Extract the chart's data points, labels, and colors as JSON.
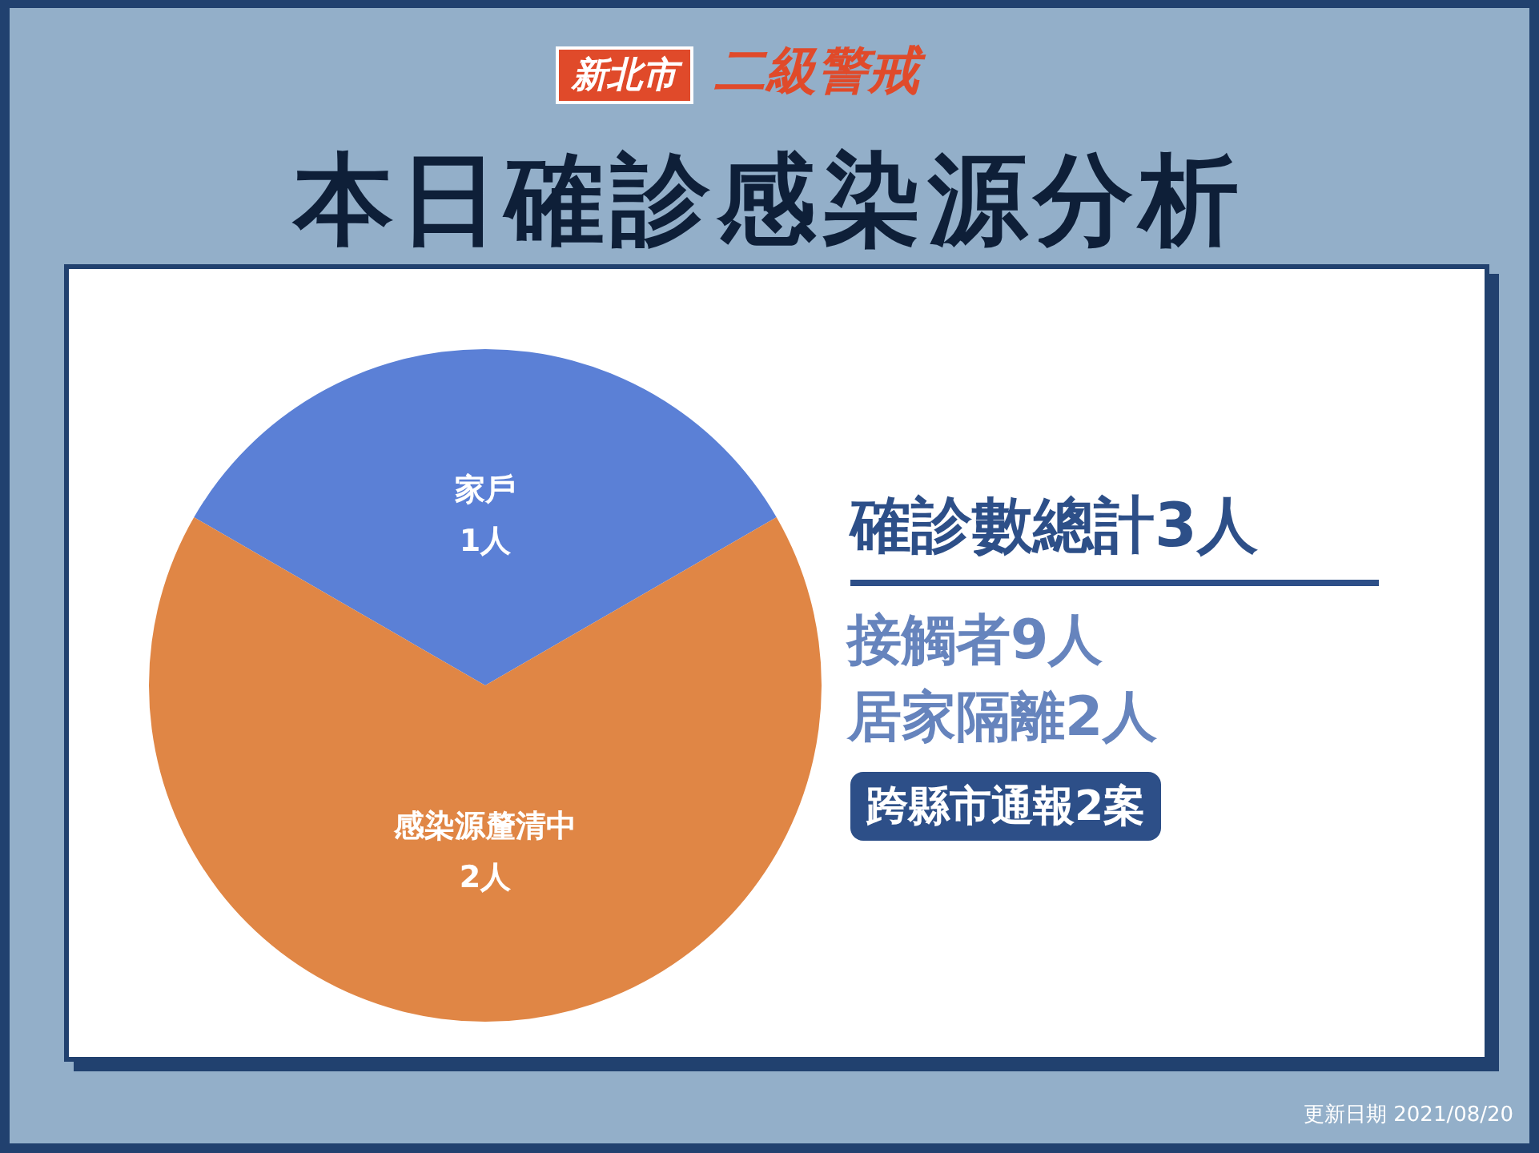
{
  "chart_data": {
    "type": "pie",
    "title": "本日確診感染源分析",
    "subtitle": "二級警戒",
    "categories": [
      "家戶",
      "感染源釐清中"
    ],
    "values": [
      1,
      2
    ],
    "value_labels": [
      "1人",
      "2人"
    ],
    "colors": [
      "#5b80d6",
      "#e08645"
    ],
    "legend": false,
    "annotations": [
      "新北市",
      "確診數總計3人",
      "接觸者9人",
      "居家隔離2人",
      "跨縣市通報2案",
      "更新日期 2021/08/20"
    ]
  }
}
